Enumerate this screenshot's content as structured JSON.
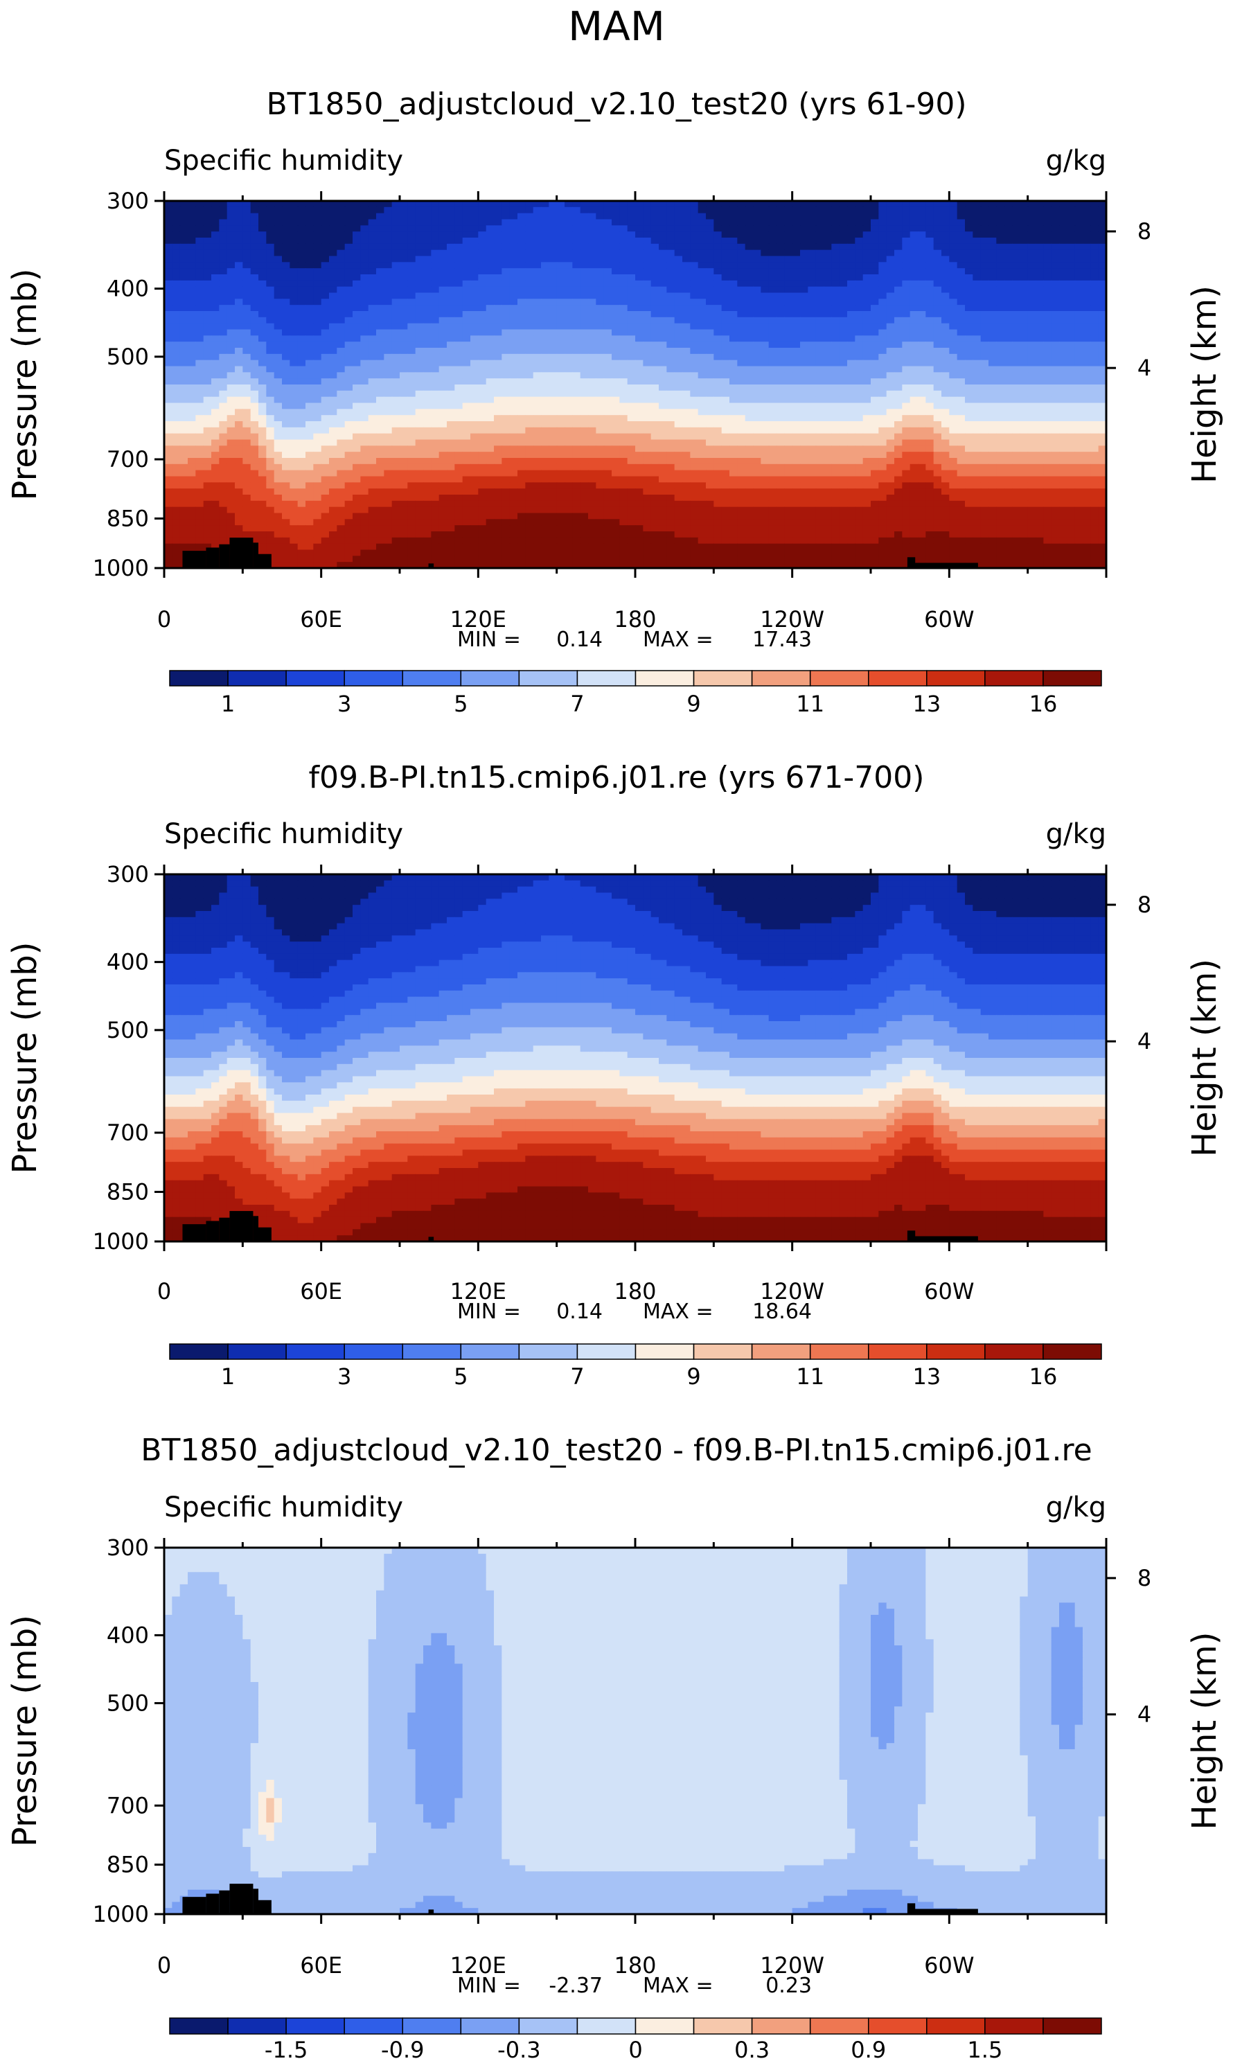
{
  "figure": {
    "season": "MAM"
  },
  "colors": {
    "seq": [
      "#0a1a6e",
      "#0f2db0",
      "#1c44d8",
      "#2f5ee8",
      "#4f7ef0",
      "#7aa0f3",
      "#a6c2f6",
      "#d2e2f8",
      "#fbeee0",
      "#f6c8ac",
      "#f2a07e",
      "#ee7752",
      "#e54e2c",
      "#cc2e12",
      "#a8170a",
      "#7d0c04"
    ],
    "diff": [
      "#0a1a6e",
      "#0f2db0",
      "#1c44d8",
      "#2f5ee8",
      "#4f7ef0",
      "#7aa0f3",
      "#a6c2f6",
      "#d2e2f8",
      "#fbeee0",
      "#f6c8ac",
      "#f2a07e",
      "#ee7752",
      "#e54e2c",
      "#cc2e12",
      "#a8170a",
      "#7d0c04"
    ],
    "terrain": "#000000"
  },
  "chart_data": [
    {
      "type": "heatmap",
      "title": "BT1850_adjustcloud_v2.10_test20 (yrs 61-90)",
      "variable": "Specific humidity",
      "units": "g/kg",
      "ylabel": "Pressure (mb)",
      "y2label": "Height (km)",
      "yticks": [
        300,
        400,
        500,
        700,
        850,
        1000
      ],
      "y2ticks": [
        8,
        4
      ],
      "xticks": [
        "0",
        "60E",
        "120E",
        "180",
        "120W",
        "60W"
      ],
      "xtick_lons": [
        0,
        60,
        120,
        180,
        240,
        300
      ],
      "xlim": [
        0,
        360
      ],
      "ylim": [
        1000,
        300
      ],
      "stats": {
        "min_label": "MIN =",
        "min": "0.14",
        "max_label": "MAX =",
        "max": "17.43"
      },
      "colorbar": {
        "labels": [
          "1",
          "3",
          "5",
          "7",
          "9",
          "11",
          "13",
          "16"
        ]
      }
    },
    {
      "type": "heatmap",
      "title": "f09.B-PI.tn15.cmip6.j01.re (yrs 671-700)",
      "variable": "Specific humidity",
      "units": "g/kg",
      "ylabel": "Pressure (mb)",
      "y2label": "Height (km)",
      "yticks": [
        300,
        400,
        500,
        700,
        850,
        1000
      ],
      "y2ticks": [
        8,
        4
      ],
      "xticks": [
        "0",
        "60E",
        "120E",
        "180",
        "120W",
        "60W"
      ],
      "xtick_lons": [
        0,
        60,
        120,
        180,
        240,
        300
      ],
      "xlim": [
        0,
        360
      ],
      "ylim": [
        1000,
        300
      ],
      "stats": {
        "min_label": "MIN =",
        "min": "0.14",
        "max_label": "MAX =",
        "max": "18.64"
      },
      "colorbar": {
        "labels": [
          "1",
          "3",
          "5",
          "7",
          "9",
          "11",
          "13",
          "16"
        ]
      }
    },
    {
      "type": "heatmap",
      "title": "BT1850_adjustcloud_v2.10_test20 - f09.B-PI.tn15.cmip6.j01.re",
      "variable": "Specific humidity",
      "units": "g/kg",
      "ylabel": "Pressure (mb)",
      "y2label": "Height (km)",
      "yticks": [
        300,
        400,
        500,
        700,
        850,
        1000
      ],
      "y2ticks": [
        8,
        4
      ],
      "xticks": [
        "0",
        "60E",
        "120E",
        "180",
        "120W",
        "60W"
      ],
      "xtick_lons": [
        0,
        60,
        120,
        180,
        240,
        300
      ],
      "xlim": [
        0,
        360
      ],
      "ylim": [
        1000,
        300
      ],
      "stats": {
        "min_label": "MIN =",
        "min": "-2.37",
        "max_label": "MAX =",
        "max": "0.23"
      },
      "colorbar": {
        "labels": [
          "-1.5",
          "-0.9",
          "-0.3",
          "0",
          "0.3",
          "0.9",
          "1.5"
        ]
      }
    }
  ]
}
